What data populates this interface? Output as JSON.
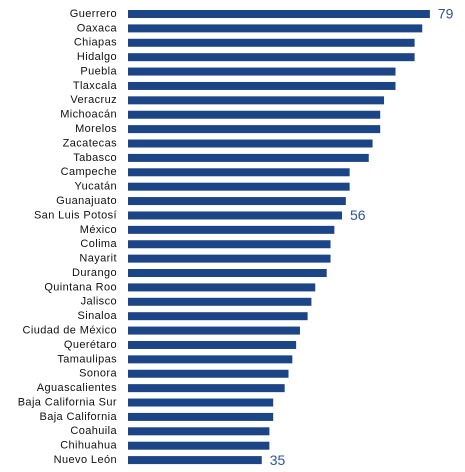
{
  "chart_data": {
    "type": "bar",
    "orientation": "horizontal",
    "color": "#1c4587",
    "categories": [
      "Guerrero",
      "Oaxaca",
      "Chiapas",
      "Hidalgo",
      "Puebla",
      "Tlaxcala",
      "Veracruz",
      "Michoacán",
      "Morelos",
      "Zacatecas",
      "Tabasco",
      "Campeche",
      "Yucatán",
      "Guanajuato",
      "San Luis Potosí",
      "México",
      "Colima",
      "Nayarit",
      "Durango",
      "Quintana Roo",
      "Jalisco",
      "Sinaloa",
      "Ciudad de México",
      "Querétaro",
      "Tamaulipas",
      "Sonora",
      "Aguascalientes",
      "Baja California Sur",
      "Baja California",
      "Coahuila",
      "Chihuahua",
      "Nuevo León"
    ],
    "values": [
      79,
      77,
      75,
      75,
      70,
      70,
      67,
      66,
      66,
      64,
      63,
      58,
      58,
      57,
      56,
      54,
      53,
      53,
      52,
      49,
      48,
      47,
      45,
      44,
      43,
      42,
      41,
      38,
      38,
      37,
      37,
      35
    ],
    "value_labels": [
      "79",
      null,
      null,
      null,
      null,
      null,
      null,
      null,
      null,
      null,
      null,
      null,
      null,
      null,
      "56",
      null,
      null,
      null,
      null,
      null,
      null,
      null,
      null,
      null,
      null,
      null,
      null,
      null,
      null,
      null,
      null,
      "35"
    ],
    "xlim": [
      0,
      84
    ]
  }
}
